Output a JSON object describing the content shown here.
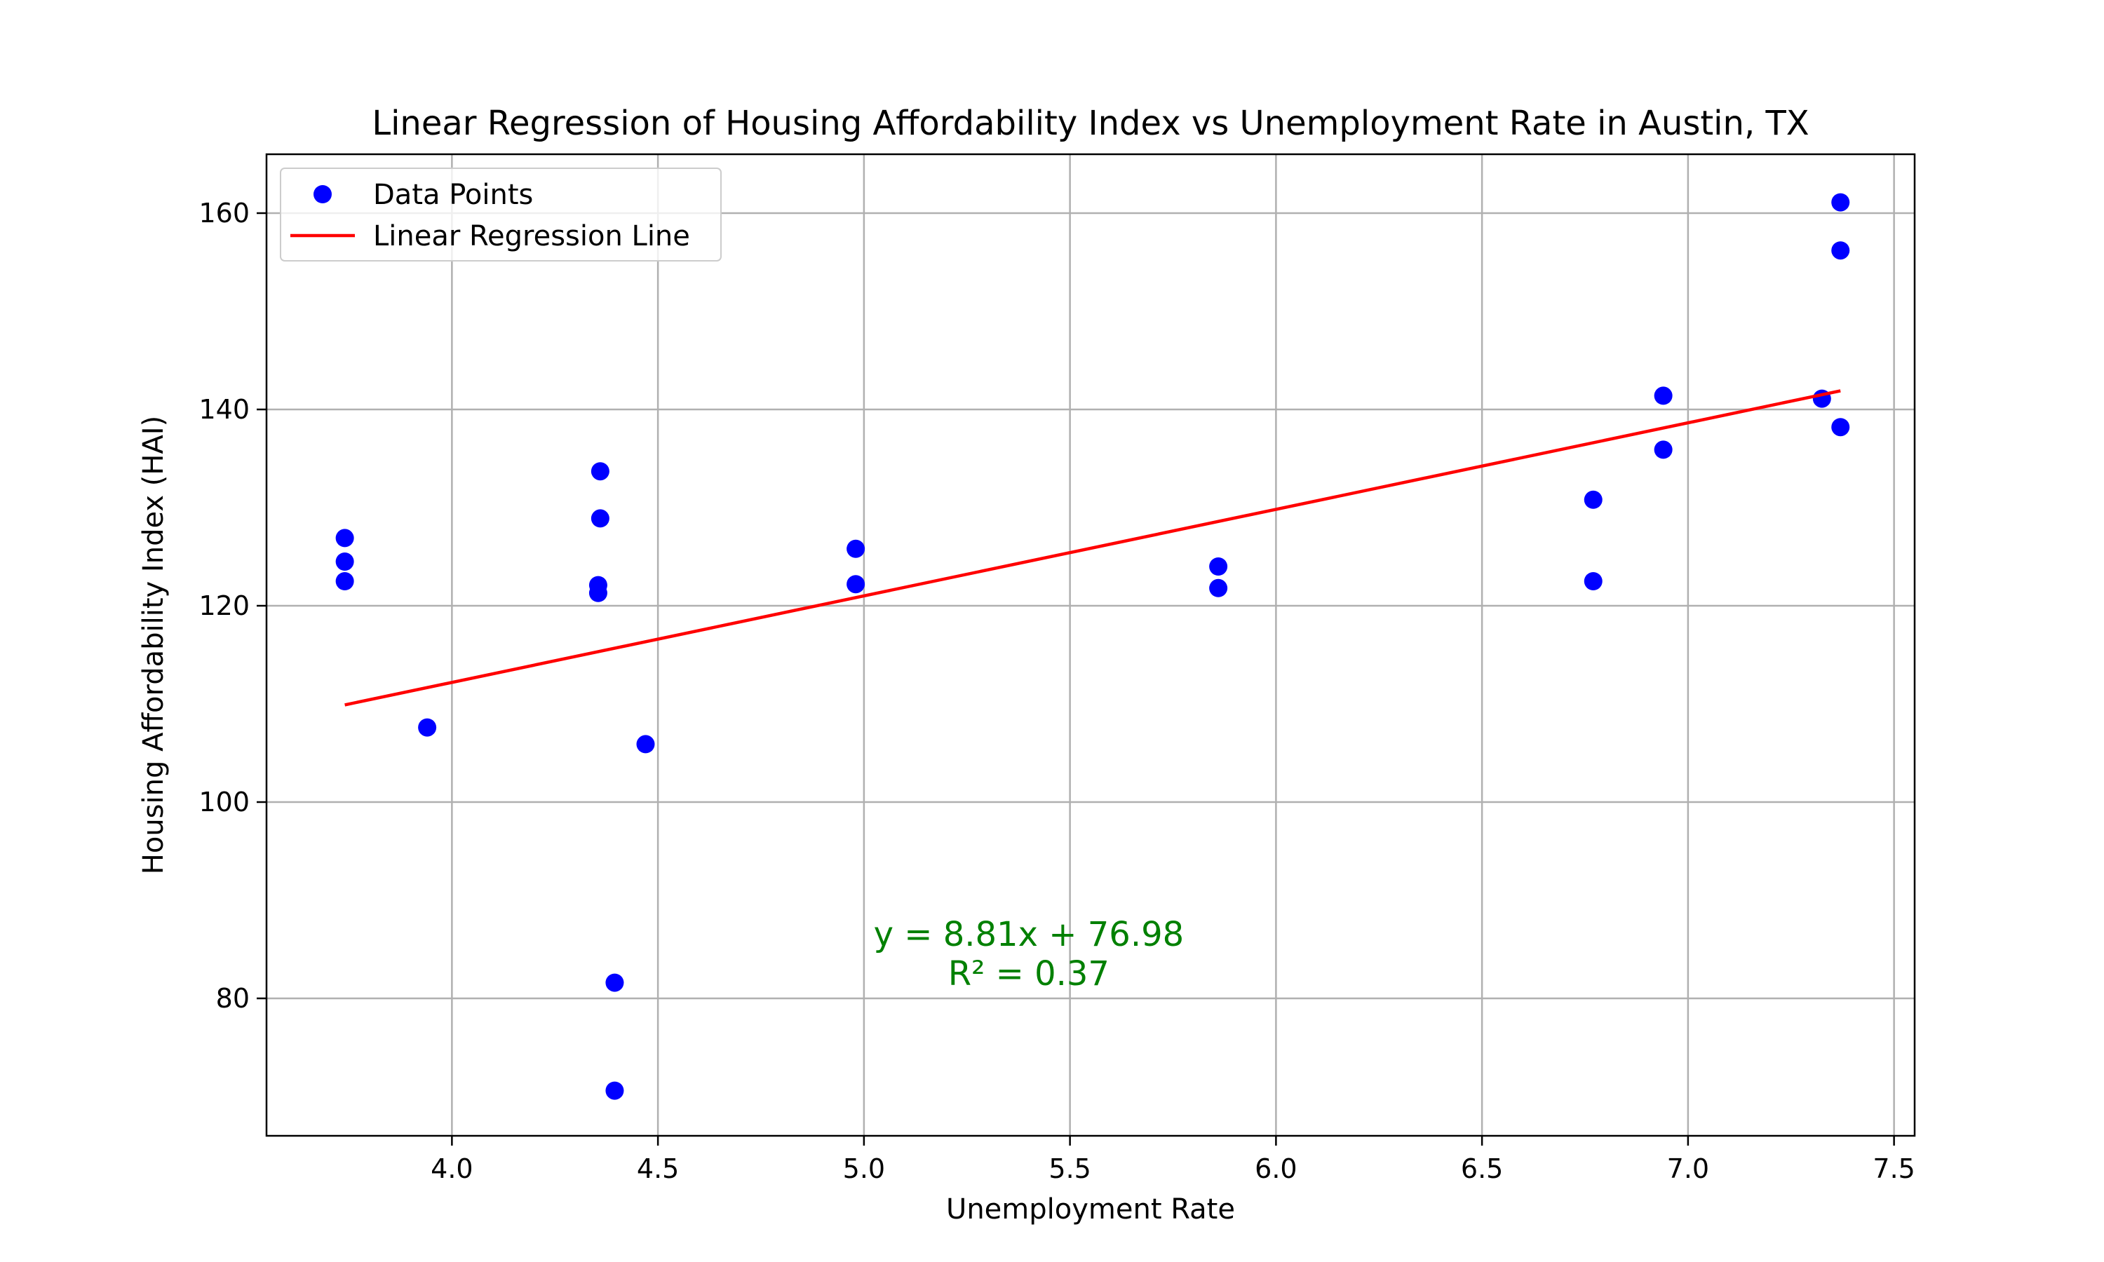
{
  "chart_data": {
    "type": "scatter",
    "title": "Linear Regression of Housing Affordability Index vs Unemployment Rate in Austin, TX",
    "xlabel": "Unemployment Rate",
    "ylabel": "Housing Affordability Index (HAI)",
    "xlim": [
      3.55,
      7.55
    ],
    "ylim": [
      66,
      166
    ],
    "xticks": [
      4.0,
      4.5,
      5.0,
      5.5,
      6.0,
      6.5,
      7.0,
      7.5
    ],
    "yticks": [
      80,
      100,
      120,
      140,
      160
    ],
    "grid": true,
    "legend_position": "top-left",
    "series": [
      {
        "name": "Data Points",
        "kind": "scatter",
        "color": "#0000ff",
        "points": [
          [
            3.74,
            126.9
          ],
          [
            3.74,
            124.5
          ],
          [
            3.74,
            122.5
          ],
          [
            3.94,
            107.6
          ],
          [
            4.36,
            133.7
          ],
          [
            4.36,
            128.9
          ],
          [
            4.355,
            122.1
          ],
          [
            4.355,
            121.3
          ],
          [
            4.47,
            105.9
          ],
          [
            4.395,
            81.6
          ],
          [
            4.395,
            70.6
          ],
          [
            4.98,
            125.8
          ],
          [
            4.98,
            122.2
          ],
          [
            5.86,
            124.0
          ],
          [
            5.86,
            121.8
          ],
          [
            6.77,
            130.8
          ],
          [
            6.77,
            122.5
          ],
          [
            6.94,
            141.4
          ],
          [
            6.94,
            135.9
          ],
          [
            7.325,
            141.1
          ],
          [
            7.37,
            161.1
          ],
          [
            7.37,
            156.2
          ],
          [
            7.37,
            138.2
          ]
        ]
      },
      {
        "name": "Linear Regression Line",
        "kind": "line",
        "color": "#ff0000",
        "points": [
          [
            3.74,
            109.9
          ],
          [
            7.37,
            141.9
          ]
        ]
      }
    ],
    "annotation": {
      "lines": [
        "y = 8.81x + 76.98",
        "R² = 0.37"
      ],
      "x": 5.4,
      "y": 84.5,
      "color": "#008000"
    }
  }
}
